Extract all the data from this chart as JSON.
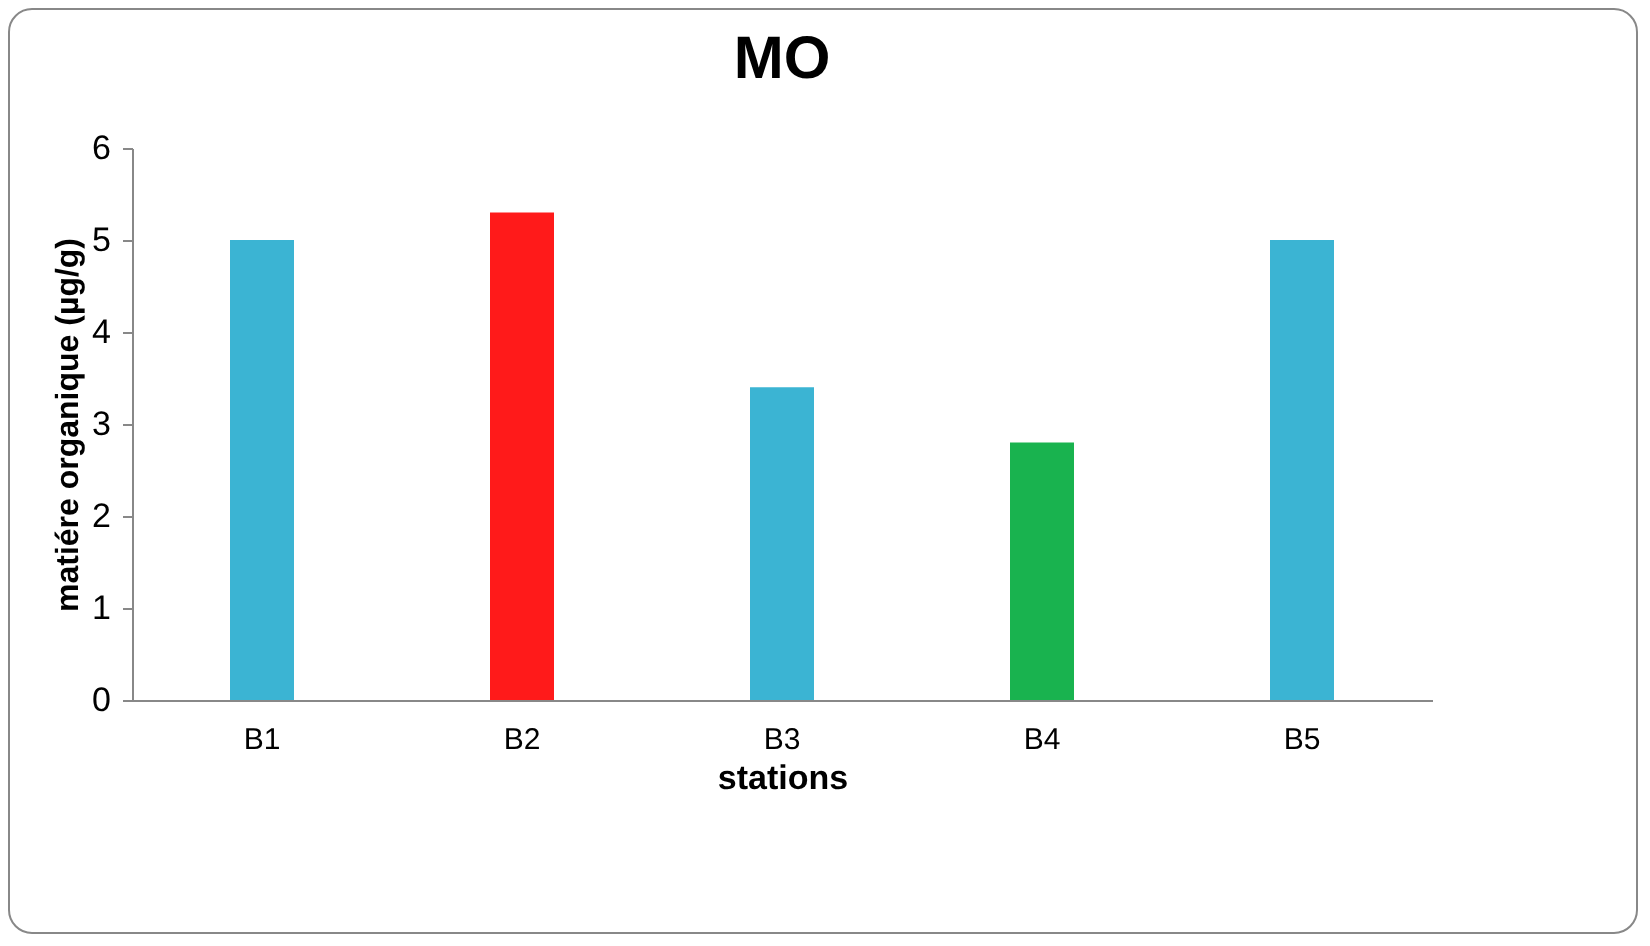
{
  "chart_data": {
    "type": "bar",
    "title": "MO",
    "xlabel": "stations",
    "ylabel": "matiére organique (µg/g)",
    "categories": [
      "B1",
      "B2",
      "B3",
      "B4",
      "B5"
    ],
    "values": [
      5.0,
      5.3,
      3.4,
      2.8,
      5.0
    ],
    "colors": [
      "#3bb4d3",
      "#ff1a1a",
      "#3bb4d3",
      "#19b34f",
      "#3bb4d3"
    ],
    "ylim": [
      0,
      6
    ],
    "yticks": [
      0,
      1,
      2,
      3,
      4,
      5,
      6
    ],
    "grid": false
  }
}
